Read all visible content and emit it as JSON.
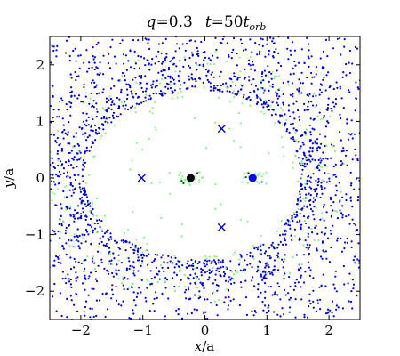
{
  "chart_data": {
    "type": "scatter",
    "title_q": "q",
    "title_q_value": "=0.3",
    "title_t": "t",
    "title_t_value": "=50",
    "title_t_unit": "t",
    "title_t_sub": "orb",
    "xlabel_var": "x",
    "xlabel_unit": "/a",
    "ylabel_var": "y",
    "ylabel_unit": "/a",
    "xlim": [
      -2.5,
      2.5
    ],
    "ylim": [
      -2.5,
      2.5
    ],
    "xticks": [
      -2,
      -1,
      0,
      1,
      2
    ],
    "yticks": [
      -2,
      -1,
      0,
      1,
      2
    ],
    "xtick_labels": [
      "−2",
      "−1",
      "0",
      "1",
      "2"
    ],
    "ytick_labels": [
      "−2",
      "−1",
      "0",
      "1",
      "2"
    ],
    "grid": false,
    "colors": {
      "disk_particles": "#0000cc",
      "accreted_particles": "#90ee90",
      "dark_particles": "#006400",
      "primary": "#000000",
      "secondary": "#0000ff",
      "lagrange_markers": "#0000cc"
    },
    "primary_star": {
      "x": -0.23,
      "y": 0.0
    },
    "secondary_star": {
      "x": 0.77,
      "y": 0.0
    },
    "lagrange_points": [
      {
        "x": 0.27,
        "y": 0.87
      },
      {
        "x": 0.27,
        "y": -0.87
      },
      {
        "x": -1.02,
        "y": 0.0
      }
    ],
    "disk_annulus": {
      "inner_radius_x": [
        1.95,
        1.55
      ],
      "inner_radius_y": [
        1.45,
        1.55
      ],
      "outer_radius": 2.5
    }
  }
}
